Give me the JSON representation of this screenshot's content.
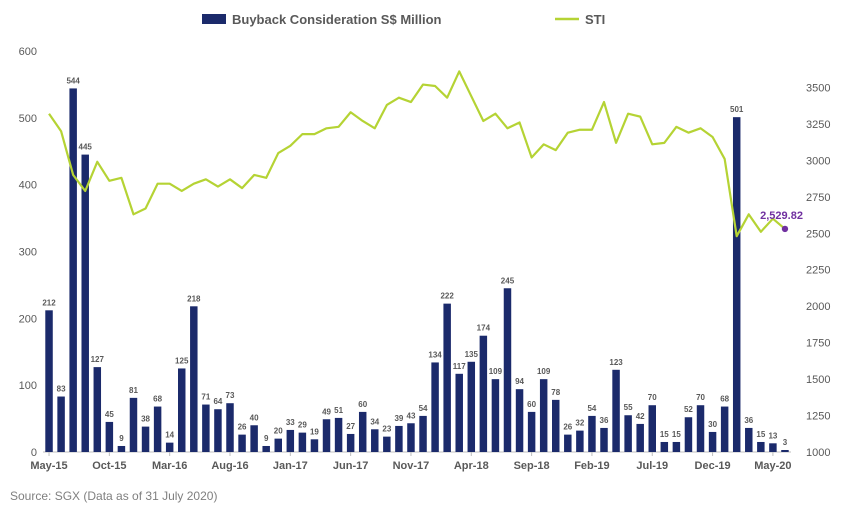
{
  "chart_data": {
    "type": "bar",
    "title": "",
    "source": "Source: SGX (Data as of 31 July 2020)",
    "legend": {
      "placement": "top",
      "items": [
        {
          "label": "Buyback Consideration S$ Million",
          "marker": "bar"
        },
        {
          "label": "STI",
          "marker": "line"
        }
      ]
    },
    "colors": {
      "bar": "#1b2a6b",
      "line": "#b5d334",
      "last_point": "#7030a0",
      "text": "#595959"
    },
    "x_tick_labels": [
      "May-15",
      "Oct-15",
      "Mar-16",
      "Aug-16",
      "Jan-17",
      "Jun-17",
      "Nov-17",
      "Apr-18",
      "Sep-18",
      "Feb-19",
      "Jul-19",
      "Dec-19",
      "May-20"
    ],
    "y_left": {
      "min": 0,
      "max": 600,
      "step": 100,
      "ticks": [
        "0",
        "100",
        "200",
        "300",
        "400",
        "500",
        "600"
      ]
    },
    "y_right": {
      "min": 1000,
      "max": 3750,
      "step": 250,
      "ticks": [
        "1000",
        "1250",
        "1500",
        "1750",
        "2000",
        "2250",
        "2500",
        "2750",
        "3000",
        "3250",
        "3500"
      ]
    },
    "grid": false,
    "series": [
      {
        "name": "Buyback Consideration S$ Million",
        "type": "bar",
        "axis": "left",
        "values": [
          212,
          83,
          544,
          445,
          127,
          45,
          9,
          81,
          38,
          68,
          14,
          125,
          218,
          71,
          64,
          73,
          26,
          40,
          9,
          20,
          33,
          29,
          19,
          49,
          51,
          27,
          60,
          34,
          23,
          39,
          43,
          54,
          134,
          222,
          117,
          135,
          174,
          109,
          245,
          94,
          60,
          109,
          78,
          26,
          32,
          54,
          36,
          123,
          55,
          42,
          70,
          15,
          15,
          52,
          70,
          30,
          68,
          501,
          36,
          15,
          13,
          3
        ],
        "labels": [
          "212",
          "83",
          "544",
          "445",
          "127",
          "45",
          "9",
          "81",
          "38",
          "68",
          "14",
          "125",
          "218",
          "71",
          "64",
          "73",
          "26",
          "40",
          "9",
          "20",
          "33",
          "29",
          "19",
          "49",
          "51",
          "27",
          "60",
          "34",
          "23",
          "39",
          "43",
          "54",
          "134",
          "222",
          "117",
          "135",
          "174",
          "109",
          "245",
          "94",
          "60",
          "109",
          "78",
          "26",
          "32",
          "54",
          "36",
          "123",
          "55",
          "42",
          "70",
          "15",
          "15",
          "52",
          "70",
          "30",
          "68",
          "501",
          "36",
          "15",
          "13",
          "3"
        ]
      },
      {
        "name": "STI",
        "type": "line",
        "axis": "right",
        "values": [
          3320,
          3200,
          2900,
          2790,
          2990,
          2860,
          2880,
          2630,
          2670,
          2840,
          2840,
          2790,
          2840,
          2870,
          2820,
          2870,
          2810,
          2900,
          2880,
          3050,
          3100,
          3180,
          3180,
          3220,
          3230,
          3330,
          3270,
          3220,
          3380,
          3430,
          3400,
          3520,
          3510,
          3430,
          3610,
          3440,
          3270,
          3320,
          3220,
          3260,
          3020,
          3110,
          3070,
          3190,
          3210,
          3210,
          3400,
          3120,
          3320,
          3300,
          3110,
          3120,
          3230,
          3190,
          3220,
          3160,
          3010,
          2480,
          2630,
          2510,
          2600,
          2529.82
        ],
        "last_label": "2,529.82"
      }
    ]
  }
}
